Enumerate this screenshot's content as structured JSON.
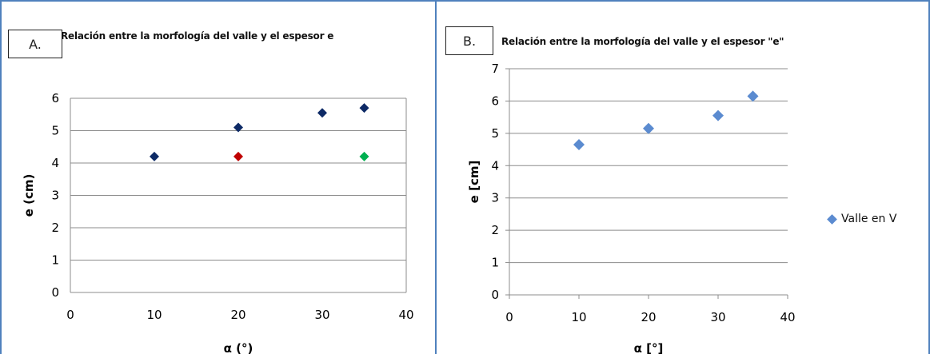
{
  "colors": {
    "frame": "#4f81bd",
    "grid": "#8c8c8c"
  },
  "chart_data": [
    {
      "panel": "A.",
      "type": "scatter",
      "title": "Relación entre la morfología del valle y el espesor e",
      "xlabel": "α (°)",
      "ylabel": "e (cm)",
      "xlim": [
        0,
        40
      ],
      "ylim": [
        0,
        6
      ],
      "x_ticks": [
        "0",
        "10",
        "20",
        "30",
        "40"
      ],
      "y_ticks": [
        "0",
        "1",
        "2",
        "3",
        "4",
        "5",
        "6"
      ],
      "grid": "horizontal",
      "series": [
        {
          "color": "#0d2a66",
          "points": [
            [
              10,
              4.2
            ],
            [
              20,
              5.1
            ],
            [
              30,
              5.55
            ],
            [
              35,
              5.7
            ]
          ]
        },
        {
          "color": "#c00000",
          "points": [
            [
              20,
              4.2
            ]
          ]
        },
        {
          "color": "#00b050",
          "points": [
            [
              35,
              4.2
            ]
          ]
        }
      ]
    },
    {
      "panel": "B.",
      "type": "scatter",
      "title": "Relación entre la morfología del valle y el espesor \"e\"",
      "xlabel": "α [°]",
      "ylabel": "e [cm]",
      "xlim": [
        0,
        40
      ],
      "ylim": [
        0,
        7
      ],
      "x_ticks": [
        "0",
        "10",
        "20",
        "30",
        "40"
      ],
      "y_ticks": [
        "0",
        "1",
        "2",
        "3",
        "4",
        "5",
        "6",
        "7"
      ],
      "grid": "horizontal",
      "legend_position": "right",
      "series": [
        {
          "name": "Valle en V",
          "color": "#5b8bd0",
          "points": [
            [
              10,
              4.65
            ],
            [
              20,
              5.15
            ],
            [
              30,
              5.55
            ],
            [
              35,
              6.15
            ]
          ]
        }
      ]
    }
  ]
}
